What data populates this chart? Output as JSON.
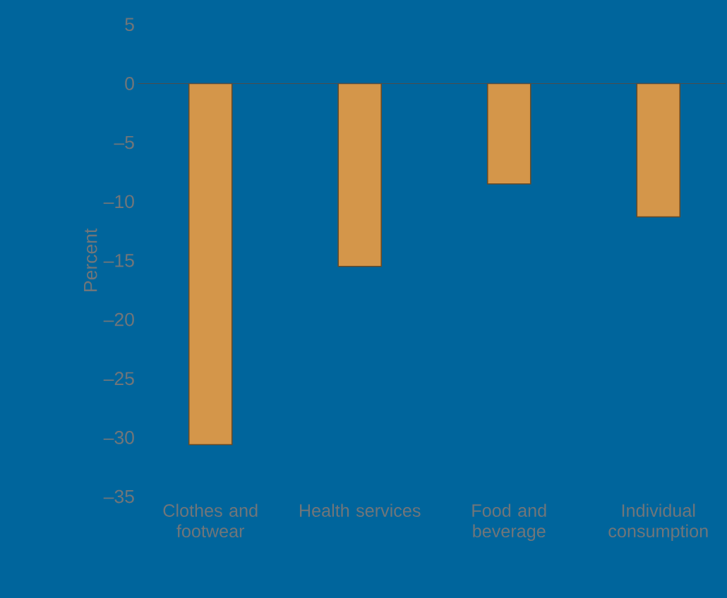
{
  "chart_data": {
    "type": "bar",
    "ylabel": "Percent",
    "categories": [
      "Clothes and footwear",
      "Health services",
      "Food and beverage",
      "Individual consumption"
    ],
    "values": [
      -30.6,
      -15.5,
      -8.5,
      -11.3
    ],
    "ylim": [
      -35,
      5
    ],
    "yticks": [
      {
        "value": 5,
        "label": "5"
      },
      {
        "value": 0,
        "label": "0"
      },
      {
        "value": -5,
        "label": "–5"
      },
      {
        "value": -10,
        "label": "–10"
      },
      {
        "value": -15,
        "label": "–15"
      },
      {
        "value": -20,
        "label": "–20"
      },
      {
        "value": -25,
        "label": "–25"
      },
      {
        "value": -30,
        "label": "–30"
      },
      {
        "value": -35,
        "label": "–35"
      }
    ],
    "color": "#d4964a"
  }
}
